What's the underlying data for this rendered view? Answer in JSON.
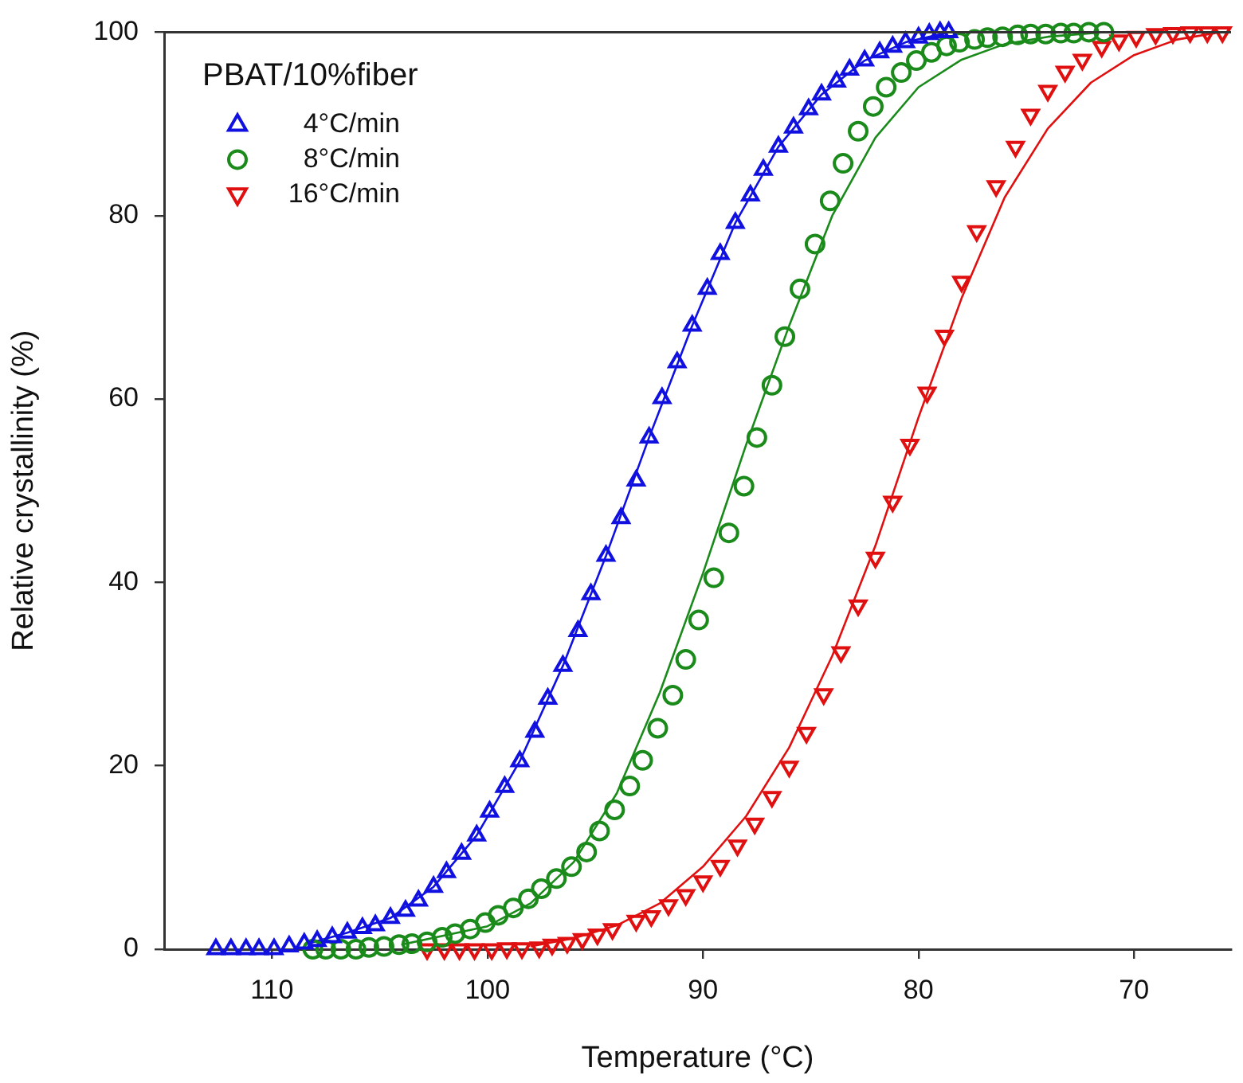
{
  "chart_data": {
    "type": "scatter",
    "xlabel": "Temperature (°C)",
    "ylabel": "Relative crystallinity (%)",
    "legend_title": "PBAT/10%fiber",
    "legend": "top left",
    "grid": false,
    "xlim": [
      115,
      65.5
    ],
    "xticks": [
      110,
      100,
      90,
      80,
      70
    ],
    "ylim": [
      0,
      100
    ],
    "yticks": [
      0,
      20,
      40,
      60,
      80,
      100
    ],
    "series": [
      {
        "name": "4°C/min",
        "marker": "triangle",
        "color": "#1010e0",
        "x": [
          112.6,
          111.9,
          111.2,
          110.6,
          109.9,
          109.2,
          108.5,
          107.9,
          107.2,
          106.5,
          105.8,
          105.2,
          104.5,
          103.8,
          103.2,
          102.5,
          101.9,
          101.2,
          100.5,
          99.9,
          99.2,
          98.5,
          97.8,
          97.2,
          96.5,
          95.8,
          95.2,
          94.5,
          93.8,
          93.1,
          92.5,
          91.9,
          91.2,
          90.5,
          89.8,
          89.2,
          88.5,
          87.8,
          87.2,
          86.5,
          85.8,
          85.1,
          84.5,
          83.8,
          83.2,
          82.5,
          81.8,
          81.2,
          80.6,
          80.0,
          79.5,
          79.0,
          78.6
        ],
        "values": [
          0,
          0,
          0,
          0,
          0,
          0.3,
          0.6,
          0.9,
          1.3,
          1.8,
          2.3,
          2.6,
          3.4,
          4.2,
          5.3,
          6.8,
          8.4,
          10.4,
          12.4,
          15.0,
          17.7,
          20.5,
          23.7,
          27.3,
          30.9,
          34.7,
          38.7,
          42.9,
          47.0,
          51.1,
          55.8,
          60.1,
          64.0,
          68.0,
          72.0,
          75.8,
          79.2,
          82.2,
          85.0,
          87.5,
          89.6,
          91.6,
          93.2,
          94.6,
          95.9,
          96.9,
          97.8,
          98.4,
          98.9,
          99.4,
          99.8,
          100,
          100
        ]
      },
      {
        "name": "8°C/min",
        "marker": "circle",
        "color": "#1a8a1a",
        "x": [
          108.1,
          107.5,
          106.8,
          106.1,
          105.5,
          104.8,
          104.1,
          103.5,
          102.8,
          102.1,
          101.5,
          100.8,
          100.1,
          99.5,
          98.8,
          98.1,
          97.5,
          96.8,
          96.1,
          95.4,
          94.8,
          94.1,
          93.4,
          92.8,
          92.1,
          91.4,
          90.8,
          90.2,
          89.5,
          88.8,
          88.1,
          87.5,
          86.8,
          86.2,
          85.5,
          84.8,
          84.1,
          83.5,
          82.8,
          82.1,
          81.5,
          80.8,
          80.1,
          79.4,
          78.7,
          78.1,
          77.4,
          76.8,
          76.1,
          75.4,
          74.8,
          74.1,
          73.4,
          72.8,
          72.1,
          71.4
        ],
        "values": [
          0,
          0,
          0,
          0,
          0.2,
          0.3,
          0.5,
          0.6,
          0.8,
          1.3,
          1.7,
          2.2,
          2.9,
          3.7,
          4.5,
          5.5,
          6.6,
          7.7,
          9.0,
          10.6,
          12.9,
          15.2,
          17.8,
          20.6,
          24.1,
          27.7,
          31.6,
          35.9,
          40.5,
          45.4,
          50.5,
          55.8,
          61.5,
          66.8,
          72.0,
          76.9,
          81.6,
          85.7,
          89.2,
          91.9,
          94.0,
          95.6,
          96.9,
          97.8,
          98.5,
          98.9,
          99.2,
          99.4,
          99.5,
          99.7,
          99.8,
          99.8,
          99.9,
          99.9,
          100,
          100
        ]
      },
      {
        "name": "16°C/min",
        "marker": "triangle-down",
        "color": "#e01010",
        "x": [
          102.8,
          102.0,
          101.3,
          100.6,
          99.8,
          99.1,
          98.4,
          97.6,
          97.0,
          96.3,
          95.6,
          94.9,
          94.2,
          93.1,
          92.4,
          91.6,
          90.8,
          90.0,
          89.2,
          88.4,
          87.6,
          86.8,
          86.0,
          85.2,
          84.4,
          83.6,
          82.8,
          82.0,
          81.2,
          80.4,
          79.6,
          78.8,
          78.0,
          77.3,
          76.4,
          75.5,
          74.8,
          74.0,
          73.2,
          72.4,
          71.5,
          70.7,
          69.9,
          69.0,
          68.2,
          67.4,
          66.6,
          65.9
        ],
        "values": [
          0,
          0,
          0,
          0,
          0,
          0.1,
          0.1,
          0.2,
          0.5,
          0.7,
          1.1,
          1.6,
          2.2,
          3.1,
          3.6,
          4.8,
          5.9,
          7.4,
          9.1,
          11.3,
          13.7,
          16.6,
          19.9,
          23.6,
          27.8,
          32.4,
          37.5,
          42.7,
          48.8,
          55.0,
          60.7,
          66.9,
          72.8,
          78.3,
          83.2,
          87.5,
          91.0,
          93.6,
          95.7,
          97.0,
          98.4,
          99.1,
          99.5,
          99.8,
          99.9,
          100,
          100,
          100
        ]
      },
      {
        "type": "line",
        "marker": "none",
        "line_style": "solid",
        "color": "#1010e0",
        "x": [
          108.5,
          106.5,
          104.5,
          102.5,
          100.5,
          98.5,
          96.5,
          94.5,
          92.5,
          90.5,
          88.5,
          86.5,
          84.5,
          82.5,
          80.6,
          78.6
        ],
        "values": [
          0.5,
          1.8,
          3.4,
          6.8,
          12.4,
          20.5,
          30.9,
          42.9,
          55.8,
          68.0,
          79.2,
          87.5,
          93.2,
          96.9,
          98.9,
          100
        ]
      },
      {
        "type": "line",
        "marker": "none",
        "line_style": "solid",
        "color": "#1a8a1a",
        "x": [
          104,
          100,
          98,
          96,
          94,
          92,
          90,
          89,
          88,
          86,
          84,
          82,
          80,
          78,
          76,
          74,
          71.4
        ],
        "values": [
          0.5,
          2.5,
          5,
          9.5,
          17,
          28,
          41,
          48,
          55,
          68,
          80,
          88.5,
          94,
          97,
          98.7,
          99.5,
          100
        ]
      },
      {
        "type": "line",
        "marker": "none",
        "line_style": "solid",
        "color": "#e01010",
        "x": [
          98,
          96,
          94,
          92,
          90,
          88,
          86,
          84,
          82,
          80,
          78,
          76,
          74,
          72,
          70,
          68,
          66
        ],
        "values": [
          0.3,
          1.2,
          2.6,
          5,
          9,
          14.5,
          22,
          32,
          44,
          58,
          71,
          82,
          89.5,
          94.5,
          97.5,
          99.2,
          100
        ]
      }
    ]
  }
}
